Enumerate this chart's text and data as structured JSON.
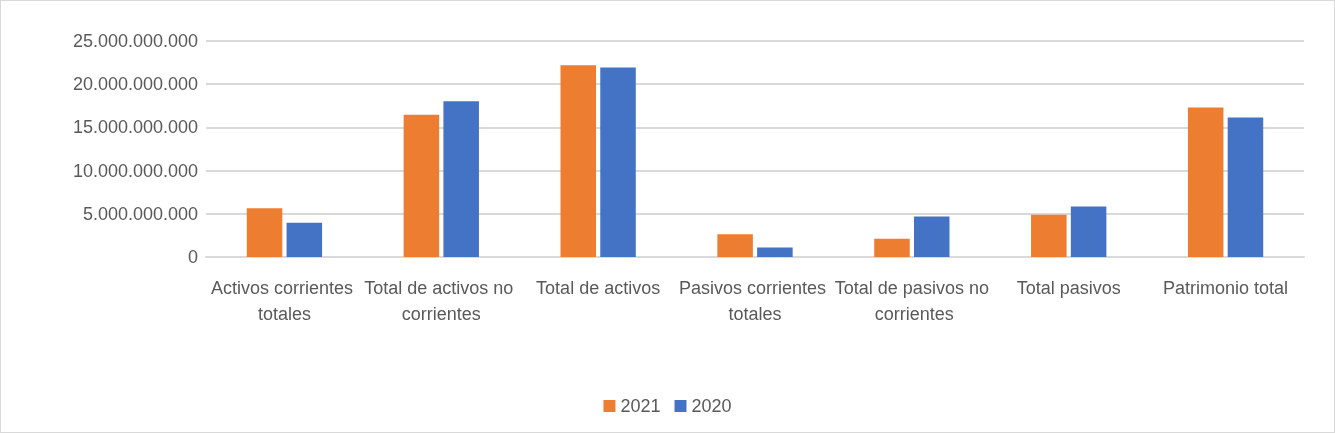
{
  "chart_data": {
    "type": "bar",
    "categories": [
      "Activos corrientes totales",
      "Total de activos no corrientes",
      "Total de activos",
      "Pasivos corrientes totales",
      "Total de pasivos no corrientes",
      "Total pasivos",
      "Patrimonio total"
    ],
    "series": [
      {
        "name": "2021",
        "color": "#ed7d31",
        "values": [
          5640000000,
          16450000000,
          22200000000,
          2630000000,
          2100000000,
          4890000000,
          17290000000
        ]
      },
      {
        "name": "2020",
        "color": "#4472c4",
        "values": [
          3950000000,
          18020000000,
          21930000000,
          1100000000,
          4690000000,
          5840000000,
          16140000000
        ]
      }
    ],
    "ylim": [
      0,
      25000000000
    ],
    "yticks": [
      {
        "value": 0,
        "label": "0"
      },
      {
        "value": 5000000000,
        "label": "5.000.000.000"
      },
      {
        "value": 10000000000,
        "label": "10.000.000.000"
      },
      {
        "value": 15000000000,
        "label": "15.000.000.000"
      },
      {
        "value": 20000000000,
        "label": "20.000.000.000"
      },
      {
        "value": 25000000000,
        "label": "25.000.000.000"
      }
    ],
    "grid": "y",
    "legend": "bottom"
  }
}
